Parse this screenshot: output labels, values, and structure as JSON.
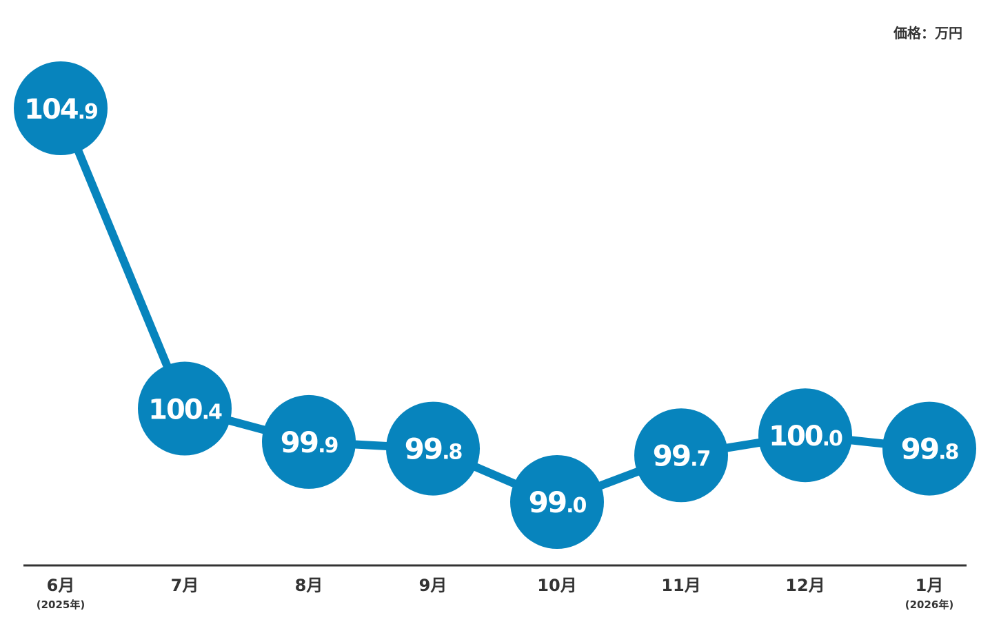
{
  "unit_label": "価格：万円",
  "colors": {
    "accent": "#0784bd",
    "axis": "#333333",
    "text_dark": "#333333",
    "marker_text": "#ffffff",
    "background": "#ffffff"
  },
  "chart_data": {
    "type": "line",
    "unit": "価格：万円",
    "categories": [
      "6月",
      "7月",
      "8月",
      "9月",
      "10月",
      "11月",
      "12月",
      "1月"
    ],
    "category_notes": [
      "(2025年)",
      "",
      "",
      "",
      "",
      "",
      "",
      "(2026年)"
    ],
    "values": [
      104.9,
      100.4,
      99.9,
      99.8,
      99.0,
      99.7,
      100.0,
      99.8
    ],
    "value_labels": [
      {
        "int": "104",
        "dec": ".9"
      },
      {
        "int": "100",
        "dec": ".4"
      },
      {
        "int": "99",
        "dec": ".9"
      },
      {
        "int": "99",
        "dec": ".8"
      },
      {
        "int": "99",
        "dec": ".0"
      },
      {
        "int": "99",
        "dec": ".7"
      },
      {
        "int": "100",
        "dec": ".0"
      },
      {
        "int": "99",
        "dec": ".8"
      }
    ],
    "title": "",
    "xlabel": "",
    "ylabel": "",
    "grid": false,
    "legend": "none"
  }
}
